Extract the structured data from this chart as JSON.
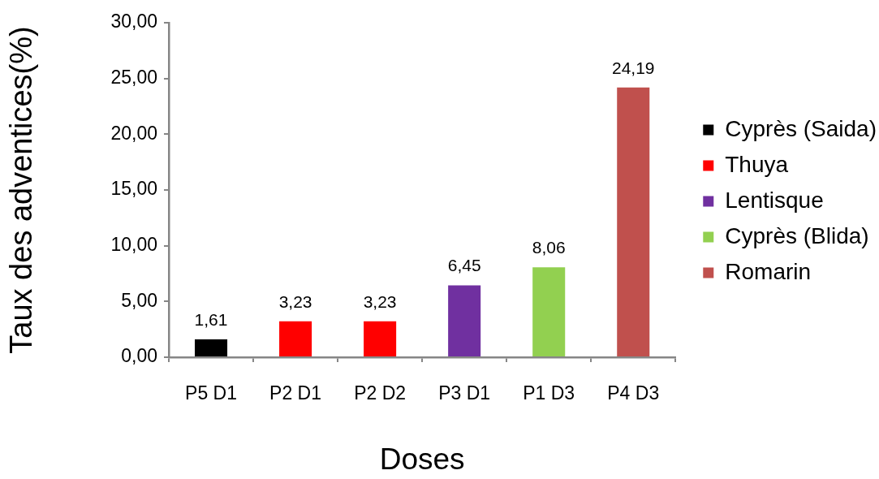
{
  "chart_data": {
    "type": "bar",
    "xlabel": "Doses",
    "ylabel": "Taux des adventices(%)",
    "categories": [
      "P5 D1",
      "P2 D1",
      "P2 D2",
      "P3 D1",
      "P1 D3",
      "P4 D3"
    ],
    "series": [
      {
        "name": "Cyprès (Saida)",
        "color": "#000000",
        "values": [
          1.61,
          null,
          null,
          null,
          null,
          null
        ],
        "value_labels": [
          "1,61",
          null,
          null,
          null,
          null,
          null
        ]
      },
      {
        "name": "Thuya",
        "color": "#ff0000",
        "values": [
          null,
          3.23,
          3.23,
          null,
          null,
          null
        ],
        "value_labels": [
          null,
          "3,23",
          "3,23",
          null,
          null,
          null
        ]
      },
      {
        "name": "Lentisque",
        "color": "#7030a0",
        "values": [
          null,
          null,
          null,
          6.45,
          null,
          null
        ],
        "value_labels": [
          null,
          null,
          null,
          "6,45",
          null,
          null
        ]
      },
      {
        "name": "Cyprès (Blida)",
        "color": "#92d050",
        "values": [
          null,
          null,
          null,
          null,
          8.06,
          null
        ],
        "value_labels": [
          null,
          null,
          null,
          null,
          "8,06",
          null
        ]
      },
      {
        "name": "Romarin",
        "color": "#c0504d",
        "values": [
          null,
          null,
          null,
          null,
          null,
          24.19
        ],
        "value_labels": [
          null,
          null,
          null,
          null,
          null,
          "24,19"
        ]
      }
    ],
    "ylim": [
      0,
      30
    ],
    "yticks": [
      {
        "value": 0,
        "label": "0,00"
      },
      {
        "value": 5,
        "label": "5,00"
      },
      {
        "value": 10,
        "label": "10,00"
      },
      {
        "value": 15,
        "label": "15,00"
      },
      {
        "value": 20,
        "label": "20,00"
      },
      {
        "value": 25,
        "label": "25,00"
      },
      {
        "value": 30,
        "label": "30,00"
      }
    ],
    "grid": false,
    "legend": "right"
  }
}
